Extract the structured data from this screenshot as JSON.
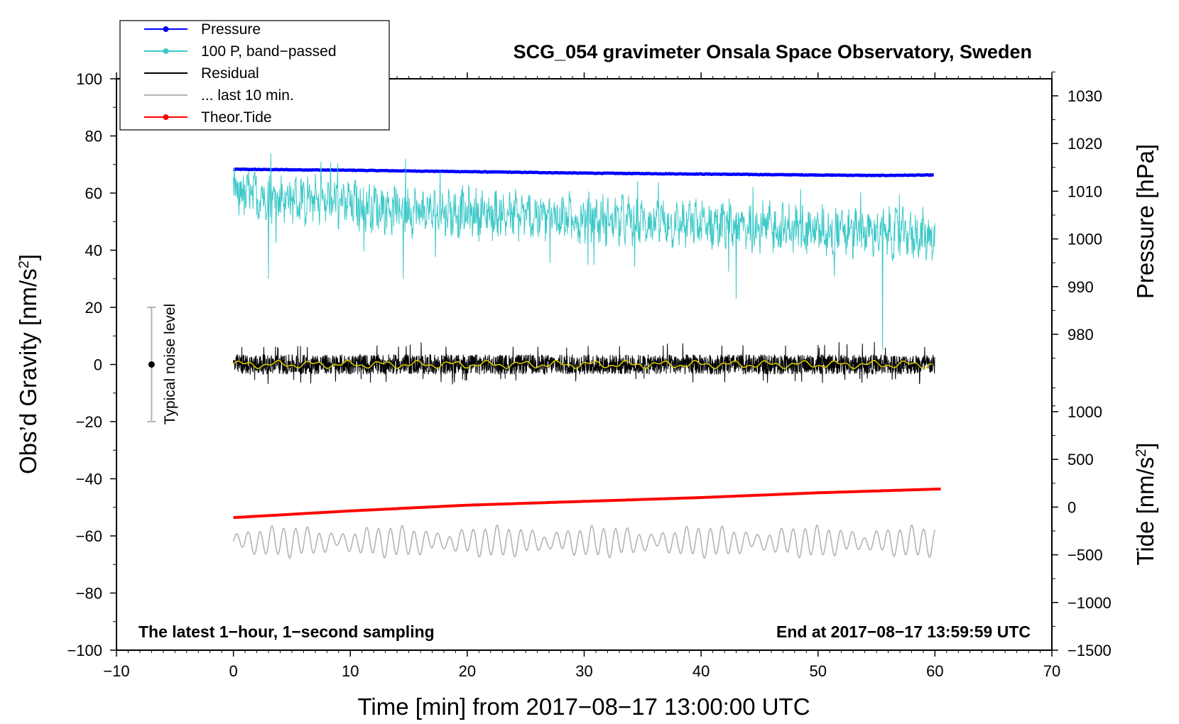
{
  "chart_data": {
    "type": "line",
    "title": "SCG_054 gravimeter Onsala Space Observatory, Sweden",
    "xlabel": "Time [min] from 2017−08−17 13:00:00 UTC",
    "ylabel_left": "Obs’d Gravity [nm/s",
    "ylabel_left_sup": "2",
    "ylabel_left_tail": "]",
    "ylabel_right_pressure": "Pressure [hPa]",
    "ylabel_right_tide": "Tide [nm/s",
    "ylabel_right_tide_sup": "2",
    "ylabel_right_tide_tail": "]",
    "xlim": [
      -10,
      70
    ],
    "ylim_left": [
      -100,
      100
    ],
    "pressure_ylim": [
      965,
      1035
    ],
    "tide_ylim": [
      -1500,
      1500
    ],
    "x_ticks": [
      -10,
      0,
      10,
      20,
      30,
      40,
      50,
      60,
      70
    ],
    "x_tick_labels": [
      "−10",
      "0",
      "10",
      "20",
      "30",
      "40",
      "50",
      "60",
      "70"
    ],
    "y_left_ticks": [
      100,
      80,
      60,
      40,
      20,
      0,
      -20,
      -40,
      -60,
      -80,
      -100
    ],
    "y_left_tick_labels": [
      "100",
      "80",
      "60",
      "40",
      "20",
      "0",
      "−20",
      "−40",
      "−60",
      "−80",
      "−100"
    ],
    "pressure_ticks": [
      1030,
      1020,
      1010,
      1000,
      990,
      980
    ],
    "pressure_tick_labels": [
      "1030",
      "1020",
      "1010",
      "1000",
      "990",
      "980"
    ],
    "tide_ticks": [
      1000,
      500,
      0,
      -500,
      -1000,
      -1500
    ],
    "tide_tick_labels": [
      "1000",
      "500",
      "0",
      "−500",
      "−1000",
      "−1500"
    ],
    "grid": false,
    "legend_position": "top-left",
    "legend": [
      {
        "label": "Pressure",
        "color": "#0000ff",
        "marker": true
      },
      {
        "label": "100 P, band−passed",
        "color": "#3cc8c8",
        "marker": true
      },
      {
        "label": "Residual",
        "color": "#000000",
        "marker": false
      },
      {
        "label": "... last 10 min.",
        "color": "#b4b4b4",
        "marker": false
      },
      {
        "label": "Theor.Tide",
        "color": "#ff0000",
        "marker": true
      }
    ],
    "series": [
      {
        "name": "Pressure",
        "axis": "pressure",
        "color": "#0000ff",
        "x": [
          0,
          10,
          20,
          30,
          40,
          50,
          55,
          60
        ],
        "y": [
          1014.6,
          1014.4,
          1014.1,
          1013.8,
          1013.6,
          1013.4,
          1013.3,
          1013.4
        ]
      },
      {
        "name": "100 P, band−passed",
        "axis": "left",
        "color": "#3cc8c8",
        "x": [
          0,
          5,
          10,
          15,
          20,
          25,
          30,
          35,
          40,
          45,
          50,
          55,
          60
        ],
        "y": [
          60,
          58,
          56,
          54,
          53,
          52,
          51,
          50,
          49,
          48,
          47,
          46,
          45
        ],
        "min_spikes": [
          [
            3,
            30
          ],
          [
            14.5,
            30
          ],
          [
            43,
            23
          ],
          [
            55.5,
            5
          ]
        ],
        "max_spikes": [
          [
            3,
            74
          ],
          [
            14.5,
            72
          ]
        ]
      },
      {
        "name": "Residual",
        "axis": "left",
        "color": "#000000",
        "x": [
          0,
          60
        ],
        "y": [
          0,
          0
        ],
        "band": [
          -7,
          8
        ]
      },
      {
        "name": "... last 10 min.",
        "axis": "left",
        "color": "#b4b4b4",
        "x": [
          0,
          60
        ],
        "y": [
          -62,
          -62
        ],
        "band": [
          -69,
          -57
        ]
      },
      {
        "name": "Theor.Tide",
        "axis": "tide",
        "color": "#ff0000",
        "x": [
          0,
          10,
          20,
          30,
          40,
          50,
          60.5
        ],
        "y": [
          -110,
          -40,
          20,
          60,
          100,
          150,
          190
        ]
      }
    ],
    "noise_bar": {
      "x": -7,
      "y": 0,
      "low": -20,
      "high": 20,
      "label": "Typical noise level"
    },
    "note_left": "The latest 1−hour, 1−second sampling",
    "note_right": "End at 2017−08−17 13:59:59 UTC"
  }
}
